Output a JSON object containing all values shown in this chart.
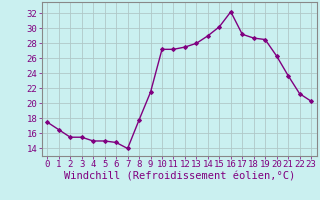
{
  "x": [
    0,
    1,
    2,
    3,
    4,
    5,
    6,
    7,
    8,
    9,
    10,
    11,
    12,
    13,
    14,
    15,
    16,
    17,
    18,
    19,
    20,
    21,
    22,
    23
  ],
  "y": [
    17.5,
    16.5,
    15.5,
    15.5,
    15.0,
    15.0,
    14.8,
    14.0,
    17.8,
    21.5,
    27.2,
    27.2,
    27.5,
    28.0,
    29.0,
    30.2,
    32.2,
    29.2,
    28.7,
    28.5,
    26.3,
    23.7,
    21.3,
    20.3
  ],
  "line_color": "#800080",
  "marker": "D",
  "marker_size": 2.0,
  "xlabel": "Windchill (Refroidissement éolien,°C)",
  "ylabel_ticks": [
    14,
    16,
    18,
    20,
    22,
    24,
    26,
    28,
    30,
    32
  ],
  "xticks": [
    0,
    1,
    2,
    3,
    4,
    5,
    6,
    7,
    8,
    9,
    10,
    11,
    12,
    13,
    14,
    15,
    16,
    17,
    18,
    19,
    20,
    21,
    22,
    23
  ],
  "ylim": [
    13.0,
    33.5
  ],
  "xlim": [
    -0.5,
    23.5
  ],
  "bg_color": "#caf0f0",
  "grid_color": "#b0c8c8",
  "line_width": 1.0,
  "tick_fontsize": 6.5,
  "xlabel_fontsize": 7.5,
  "tick_color": "#800080",
  "label_color": "#800080"
}
